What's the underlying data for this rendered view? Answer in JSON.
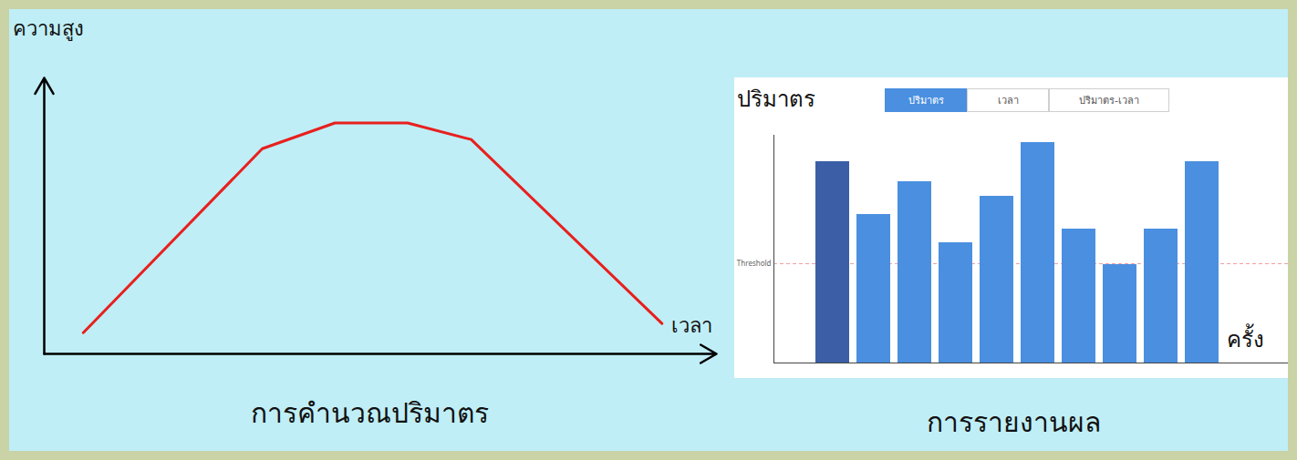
{
  "chart_data": [
    {
      "type": "line",
      "title": "การคำนวณปริมาตร",
      "x_label": "เวลา",
      "y_label": "ความสูง",
      "x": [
        43,
        240,
        320,
        400,
        470,
        680
      ],
      "values": [
        23,
        223,
        251,
        251,
        233,
        33
      ],
      "color": "#e8201e",
      "xlim": [
        0,
        740
      ],
      "ylim": [
        0,
        300
      ],
      "xticks": [],
      "yticks": [],
      "tick_labels": false,
      "grid": false
    },
    {
      "type": "bar",
      "title": "การรายงานผล",
      "x_label": "ครั้ง",
      "y_label": "ปริมาตร",
      "buttons": [
        "ปริมาตร",
        "เวลา",
        "ปริมาตร-เวลา"
      ],
      "categories": [
        null,
        null,
        null,
        null,
        null,
        null,
        null,
        null,
        null,
        null
      ],
      "values": [
        221,
        163,
        199,
        132,
        183,
        242,
        147,
        108,
        147,
        221
      ],
      "colors": [
        "#3b5ea6",
        "#4a8fe0",
        "#4a8fe0",
        "#4a8fe0",
        "#4a8fe0",
        "#4a8fe0",
        "#4a8fe0",
        "#4a8fe0",
        "#4a8fe0",
        "#4a8fe0"
      ],
      "threshold": {
        "value": 109,
        "label": "Threshold"
      },
      "ylim": [
        0,
        250
      ],
      "yticks": [],
      "tick_labels": false,
      "grid": false
    }
  ]
}
